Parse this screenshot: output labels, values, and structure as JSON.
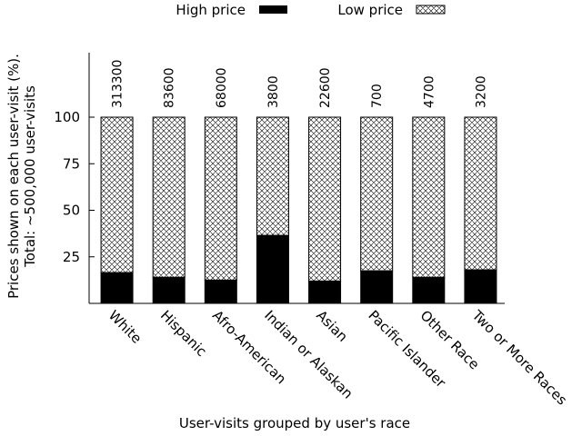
{
  "chart_data": {
    "type": "bar",
    "stacked": true,
    "xlabel": "User-visits grouped by user's race",
    "ylabel_line1": "Prices shown on each user-visit (%).",
    "ylabel_line2": "Total: ~500,000 user-visits",
    "ylim": [
      0,
      100
    ],
    "yticks": [
      25,
      50,
      75,
      100
    ],
    "categories": [
      "White",
      "Hispanic",
      "Afro-American",
      "Indian or Alaskan",
      "Asian",
      "Pacific Islander",
      "Other Race",
      "Two or More Races"
    ],
    "counts": [
      "313300",
      "83600",
      "68000",
      "3800",
      "22600",
      "700",
      "4700",
      "3200"
    ],
    "series": [
      {
        "name": "High price",
        "color": "#000000",
        "fill": "solid",
        "values": [
          16.5,
          14.0,
          12.5,
          36.5,
          12.0,
          17.5,
          14.0,
          18.0
        ]
      },
      {
        "name": "Low price",
        "color": "#000000",
        "fill": "crosshatch",
        "values": [
          83.5,
          86.0,
          87.5,
          63.5,
          88.0,
          82.5,
          86.0,
          82.0
        ]
      }
    ],
    "legend_position": "top",
    "grid": false
  }
}
